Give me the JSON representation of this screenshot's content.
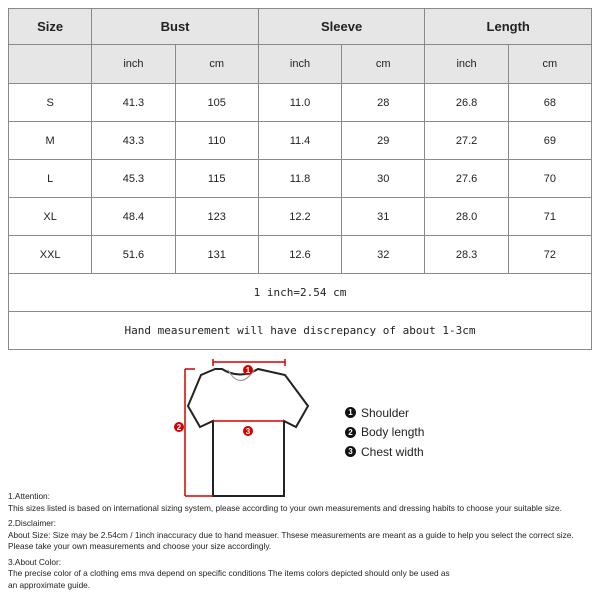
{
  "table": {
    "headers": [
      "Size",
      "Bust",
      "Sleeve",
      "Length"
    ],
    "subheaders": [
      "inch",
      "cm",
      "inch",
      "cm",
      "inch",
      "cm"
    ],
    "rows": [
      [
        "S",
        "41.3",
        "105",
        "11.0",
        "28",
        "26.8",
        "68"
      ],
      [
        "M",
        "43.3",
        "110",
        "11.4",
        "29",
        "27.2",
        "69"
      ],
      [
        "L",
        "45.3",
        "115",
        "11.8",
        "30",
        "27.6",
        "70"
      ],
      [
        "XL",
        "48.4",
        "123",
        "12.2",
        "31",
        "28.0",
        "71"
      ],
      [
        "XXL",
        "51.6",
        "131",
        "12.6",
        "32",
        "28.3",
        "72"
      ]
    ],
    "conversion": "1 inch=2.54 cm",
    "discrepancy": "Hand measurement will have discrepancy of about 1-3cm"
  },
  "diagram": {
    "marker_color": "#d40000",
    "markers": [
      "1",
      "2",
      "3"
    ],
    "legend": [
      {
        "num": "1",
        "label": "Shoulder"
      },
      {
        "num": "2",
        "label": "Body length"
      },
      {
        "num": "3",
        "label": "Chest width"
      }
    ]
  },
  "notes": [
    {
      "title": "1.Attention:",
      "lines": [
        "This sizes listed is based on international sizing system, please according to your own measurements and dressing habits to choose your suitable size."
      ]
    },
    {
      "title": "2.Disclaimer:",
      "lines": [
        "About Size: Size may be 2.54cm / 1inch inaccuracy due to hand measuer. Thsese measurements are meant as a guide to help you select the correct size.",
        "Please take your own measurements and choose your size accordingly."
      ]
    },
    {
      "title": "3.About Color:",
      "lines": [
        "The precise color of a clothing ems mva depend on specific conditions The items colors depicted should only be used as",
        "an approximate guide."
      ]
    }
  ]
}
